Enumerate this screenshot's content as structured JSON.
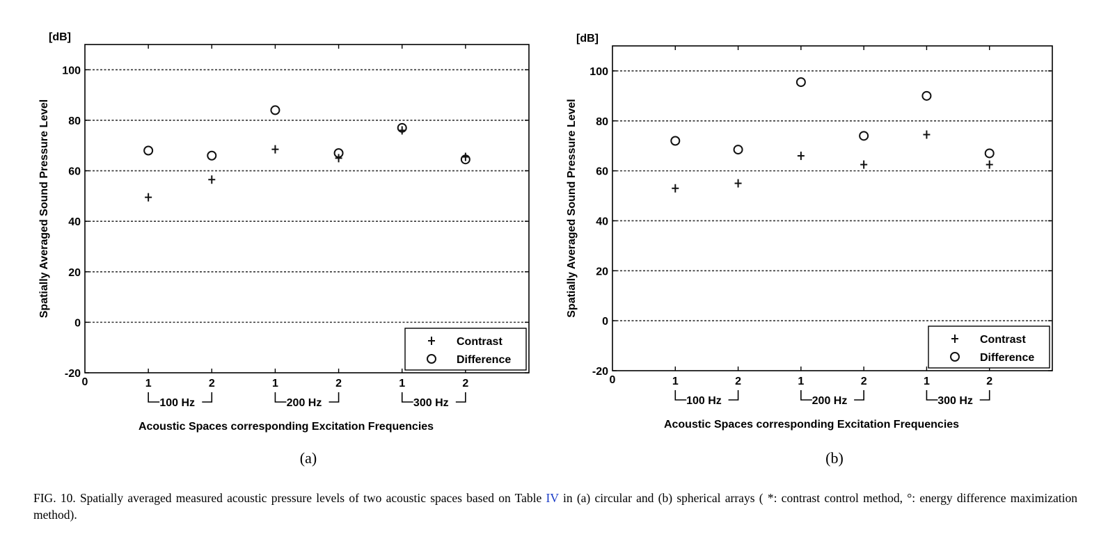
{
  "charts": [
    {
      "subcaption": "(a)",
      "chart_data": {
        "type": "scatter",
        "title": "",
        "unit_label": "[dB]",
        "ylabel": "Spatially Averaged Sound Pressure Level",
        "xlabel": "Acoustic Spaces corresponding Excitation Frequencies",
        "xlim": [
          0,
          7
        ],
        "ylim": [
          -20,
          110
        ],
        "yticks": [
          -20,
          0,
          20,
          40,
          60,
          80,
          100
        ],
        "xtick_origin": "0",
        "x": [
          1,
          2,
          3,
          4,
          5,
          6
        ],
        "x_tick_labels": [
          "1",
          "2",
          "1",
          "2",
          "1",
          "2"
        ],
        "groups": [
          {
            "label": "100 Hz",
            "from": 1,
            "to": 2
          },
          {
            "label": "200 Hz",
            "from": 3,
            "to": 4
          },
          {
            "label": "300 Hz",
            "from": 5,
            "to": 6
          }
        ],
        "grid": "horizontal dotted",
        "legend_position": "bottom-right",
        "series": [
          {
            "name": "Contrast",
            "marker": "plus",
            "values": [
              49.5,
              56.5,
              68.5,
              65,
              76,
              65.5
            ]
          },
          {
            "name": "Difference",
            "marker": "circle",
            "values": [
              68,
              66,
              84,
              67,
              77,
              64.5
            ]
          }
        ]
      }
    },
    {
      "subcaption": "(b)",
      "chart_data": {
        "type": "scatter",
        "title": "",
        "unit_label": "[dB]",
        "ylabel": "Spatially Averaged Sound Pressure Level",
        "xlabel": "Acoustic Spaces corresponding Excitation Frequencies",
        "xlim": [
          0,
          7
        ],
        "ylim": [
          -20,
          110
        ],
        "yticks": [
          -20,
          0,
          20,
          40,
          60,
          80,
          100
        ],
        "xtick_origin": "0",
        "x": [
          1,
          2,
          3,
          4,
          5,
          6
        ],
        "x_tick_labels": [
          "1",
          "2",
          "1",
          "2",
          "1",
          "2"
        ],
        "groups": [
          {
            "label": "100 Hz",
            "from": 1,
            "to": 2
          },
          {
            "label": "200 Hz",
            "from": 3,
            "to": 4
          },
          {
            "label": "300 Hz",
            "from": 5,
            "to": 6
          }
        ],
        "grid": "horizontal dotted",
        "legend_position": "bottom-right",
        "series": [
          {
            "name": "Contrast",
            "marker": "plus",
            "values": [
              53,
              55,
              66,
              62.5,
              74.5,
              62.5
            ]
          },
          {
            "name": "Difference",
            "marker": "circle",
            "values": [
              72,
              68.5,
              95.5,
              74,
              90,
              67
            ]
          }
        ]
      }
    }
  ],
  "caption": {
    "before_link": "FIG. 10. Spatially averaged measured acoustic pressure levels of two acoustic spaces based on Table ",
    "link": "IV",
    "after_link": " in (a) circular and (b) spherical arrays ( *: contrast control method, °: energy difference maximization method)."
  },
  "colors": {
    "link": "#1a3cc7",
    "marker": "#111111",
    "grid": "#333333"
  }
}
